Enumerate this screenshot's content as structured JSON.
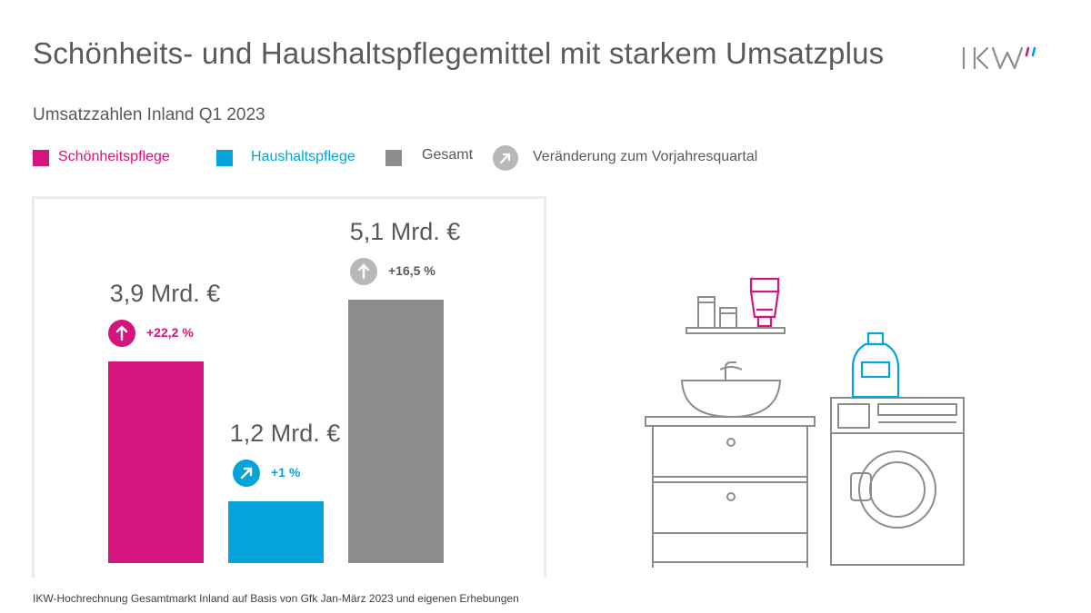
{
  "header": {
    "title": "Schönheits- und Haushaltspflegemittel mit starkem Umsatzplus",
    "logo_text": "IKW",
    "subtitle": "Umsatzzahlen Inland Q1 2023"
  },
  "legend": {
    "items": [
      {
        "label": "Schönheitspflege",
        "color": "#d4157d"
      },
      {
        "label": "Haushaltspflege",
        "color": "#06a3da"
      },
      {
        "label": "Gesamt",
        "color": "#8c8c8c"
      }
    ],
    "change_label": "Veränderung zum Vorjahresquartal"
  },
  "chart_data": {
    "type": "bar",
    "title": "Umsatzzahlen Inland Q1 2023",
    "categories": [
      "Schönheitspflege",
      "Haushaltspflege",
      "Gesamt"
    ],
    "values": [
      3.9,
      1.2,
      5.1
    ],
    "unit": "Mrd. €",
    "value_labels": [
      "3,9 Mrd. €",
      "1,2 Mrd. €",
      "5,1 Mrd. €"
    ],
    "changes": [
      "+22,2 %",
      "+1 %",
      "+16,5  %"
    ],
    "change_icons": [
      "arrow-up-icon",
      "arrow-up-right-icon",
      "arrow-up-icon"
    ],
    "colors": [
      "#d4157d",
      "#06a3da",
      "#8c8c8c"
    ],
    "change_colors": [
      "#d4157d",
      "#06a3da",
      "#595959"
    ],
    "change_circle_colors": [
      "#d4157d",
      "#06a3da",
      "#b8b8b8"
    ],
    "ylim": [
      0,
      5.3
    ],
    "grid": false,
    "legend_position": "top"
  },
  "footnote": "IKW-Hochrechnung Gesamtmarkt Inland auf Basis von Gfk Jan-März 2023 und eigenen Erhebungen"
}
